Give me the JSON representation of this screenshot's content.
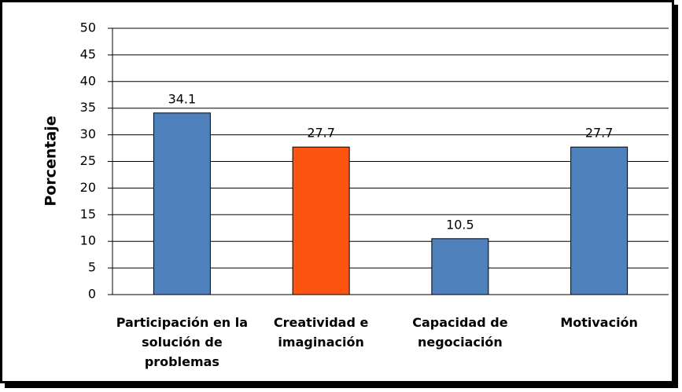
{
  "chart_data": {
    "type": "bar",
    "y_label": "Porcentaje",
    "categories": [
      "Participación en la solución de problemas",
      "Creatividad e imaginación",
      "Capacidad de negociación",
      "Motivación"
    ],
    "values": [
      34.1,
      27.7,
      10.5,
      27.7
    ],
    "colors": [
      "#4f81bd",
      "#fe5412",
      "#4f81bd",
      "#4f81bd"
    ],
    "ylim": [
      0,
      50
    ],
    "yticks": [
      0,
      5,
      10,
      15,
      20,
      25,
      30,
      35,
      40,
      45,
      50
    ],
    "grid": true
  }
}
